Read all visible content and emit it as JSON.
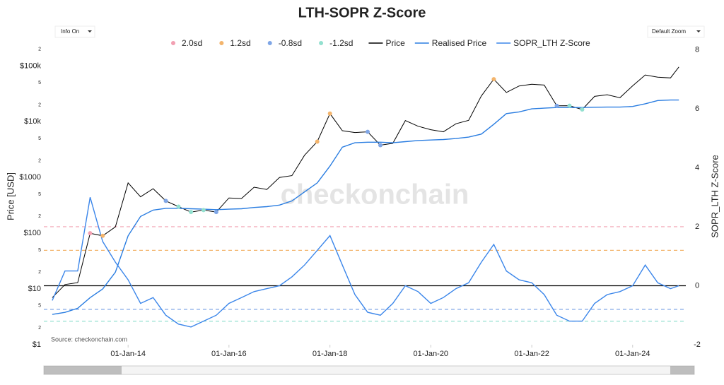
{
  "controls": {
    "info": "Info On",
    "zoom": "Default Zoom"
  },
  "chart_data": {
    "type": "line",
    "title": "LTH-SOPR Z-Score",
    "y_label": "Price [USD]",
    "y2_label": "SOPR_LTH Z-Score",
    "watermark": "checkonchain",
    "source": "Source: checkonchain.com",
    "log_y": true,
    "xlim": [
      "2012-05-01",
      "2025-01-20"
    ],
    "xticks": [
      {
        "value": "2014-01-01",
        "label": "01-Jan-14"
      },
      {
        "value": "2016-01-01",
        "label": "01-Jan-16"
      },
      {
        "value": "2018-01-01",
        "label": "01-Jan-18"
      },
      {
        "value": "2020-01-01",
        "label": "01-Jan-20"
      },
      {
        "value": "2022-01-01",
        "label": "01-Jan-22"
      },
      {
        "value": "2024-01-01",
        "label": "01-Jan-24"
      }
    ],
    "ylim": [
      1,
      250000
    ],
    "yticks": [
      {
        "value": 1,
        "label": "$1"
      },
      2,
      5,
      {
        "value": 10,
        "label": "$10"
      },
      {
        "value": 20,
        "label": "2"
      },
      {
        "value": 50,
        "label": "5"
      },
      {
        "value": 100,
        "label": "$100"
      },
      {
        "value": 200,
        "label": "2"
      },
      {
        "value": 500,
        "label": "5"
      },
      {
        "value": 1000,
        "label": "$1000"
      },
      {
        "value": 2000,
        "label": "2"
      },
      {
        "value": 5000,
        "label": "5"
      },
      {
        "value": 10000,
        "label": "$10k"
      },
      {
        "value": 20000,
        "label": "2"
      },
      {
        "value": 50000,
        "label": "5"
      },
      {
        "value": 100000,
        "label": "$100k"
      },
      {
        "value": 200000,
        "label": "2"
      }
    ],
    "y2lim": [
      -2,
      8.2
    ],
    "y2ticks": [
      -2,
      0,
      2,
      4,
      6,
      8
    ],
    "zero_line_color": "#000000",
    "thresholds": [
      {
        "name": "2.0sd",
        "color": "#f2a0b2",
        "value": 2.0
      },
      {
        "name": "1.2sd",
        "color": "#f3b46c",
        "value": 1.2
      },
      {
        "name": "-0.8sd",
        "color": "#7fa6e6",
        "value": -0.8
      },
      {
        "name": "-1.2sd",
        "color": "#93e0cf",
        "value": -1.2
      }
    ],
    "x": [
      "2012-07-01",
      "2012-10-01",
      "2013-01-01",
      "2013-04-01",
      "2013-07-01",
      "2013-10-01",
      "2014-01-01",
      "2014-04-01",
      "2014-07-01",
      "2014-10-01",
      "2015-01-01",
      "2015-04-01",
      "2015-07-01",
      "2015-10-01",
      "2016-01-01",
      "2016-04-01",
      "2016-07-01",
      "2016-10-01",
      "2017-01-01",
      "2017-04-01",
      "2017-07-01",
      "2017-10-01",
      "2018-01-01",
      "2018-04-01",
      "2018-07-01",
      "2018-10-01",
      "2019-01-01",
      "2019-04-01",
      "2019-07-01",
      "2019-10-01",
      "2020-01-01",
      "2020-04-01",
      "2020-07-01",
      "2020-10-01",
      "2021-01-01",
      "2021-04-01",
      "2021-07-01",
      "2021-10-01",
      "2022-01-01",
      "2022-04-01",
      "2022-07-01",
      "2022-10-01",
      "2023-01-01",
      "2023-04-01",
      "2023-07-01",
      "2023-10-01",
      "2024-01-01",
      "2024-04-01",
      "2024-07-01",
      "2024-10-01",
      "2024-12-01"
    ],
    "series": [
      {
        "name": "Price",
        "color": "#000000",
        "values": [
          7,
          12,
          13,
          100,
          90,
          130,
          800,
          450,
          630,
          380,
          300,
          240,
          260,
          240,
          430,
          420,
          670,
          610,
          1000,
          1080,
          2500,
          4400,
          14000,
          6900,
          6400,
          6600,
          3800,
          4100,
          10500,
          8300,
          7200,
          6600,
          9200,
          10600,
          29000,
          58000,
          33500,
          43800,
          47000,
          45500,
          19300,
          19400,
          16600,
          28500,
          30500,
          27000,
          44000,
          69000,
          63000,
          61000,
          96000
        ]
      },
      {
        "name": "Realised Price",
        "color": "#2a7de1",
        "values": [
          3.5,
          3.8,
          4.5,
          7,
          10,
          20,
          90,
          200,
          260,
          280,
          280,
          275,
          270,
          265,
          270,
          275,
          290,
          300,
          320,
          380,
          550,
          800,
          1600,
          3500,
          4200,
          4300,
          4300,
          4200,
          4400,
          4600,
          4700,
          4800,
          5000,
          5300,
          6000,
          9000,
          14000,
          15000,
          17000,
          17500,
          18000,
          18000,
          18000,
          18200,
          18300,
          18300,
          18800,
          21000,
          24000,
          24500,
          24500
        ]
      },
      {
        "name": "SOPR_LTH Z-Score",
        "color": "#3b86ea",
        "axis": "y2",
        "values": [
          -0.5,
          0.5,
          0.5,
          3.0,
          1.5,
          0.8,
          0.2,
          -0.6,
          -0.4,
          -1.0,
          -1.3,
          -1.4,
          -1.2,
          -1.0,
          -0.6,
          -0.4,
          -0.2,
          -0.1,
          0.0,
          0.3,
          0.7,
          1.2,
          1.7,
          0.7,
          -0.3,
          -0.9,
          -1.0,
          -0.6,
          0.0,
          -0.2,
          -0.6,
          -0.4,
          -0.1,
          0.1,
          0.8,
          1.4,
          0.5,
          0.2,
          0.1,
          -0.3,
          -1.0,
          -1.2,
          -1.2,
          -0.6,
          -0.3,
          -0.2,
          0.0,
          0.7,
          0.1,
          -0.1,
          0.0
        ]
      }
    ]
  }
}
